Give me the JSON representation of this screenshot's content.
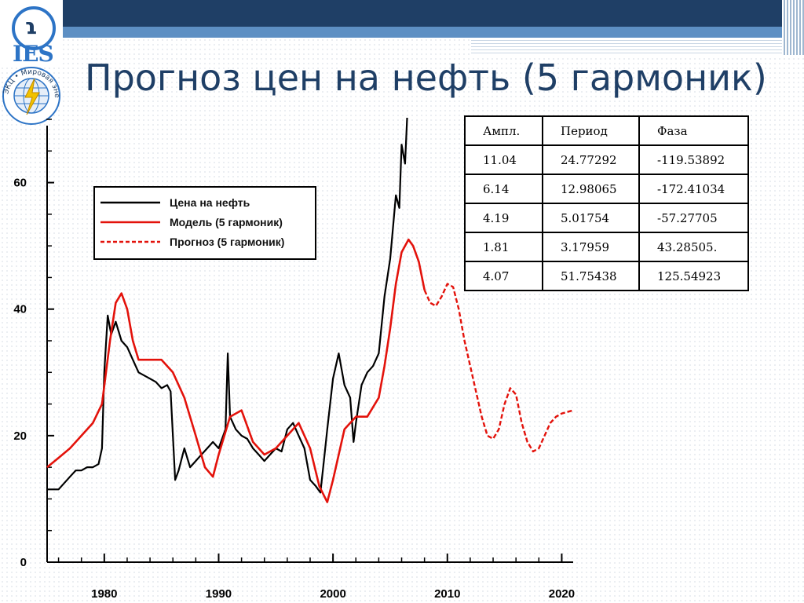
{
  "slide": {
    "title": "Прогноз цен на нефть (5 гармоник)",
    "logo_top_text": "IES",
    "logo_bottom_text": "ЭКЦ • Мировая энергетика"
  },
  "colors": {
    "header_dark": "#1f3f66",
    "header_light": "#5d8fc3",
    "title": "#1f3f66",
    "price_line": "#000000",
    "model_line": "#e3120b",
    "forecast_line": "#e3120b"
  },
  "table": {
    "headers": [
      "Ампл.",
      "Период",
      "Фаза"
    ],
    "rows": [
      [
        "11.04",
        "24.77292",
        "-119.53892"
      ],
      [
        "6.14",
        "12.98065",
        "-172.41034"
      ],
      [
        "4.19",
        "5.01754",
        "-57.27705"
      ],
      [
        "1.81",
        "3.17959",
        "43.28505."
      ],
      [
        "4.07",
        "51.75438",
        "125.54923"
      ]
    ]
  },
  "chart_data": {
    "type": "line",
    "xlim": [
      1975,
      2021
    ],
    "ylim": [
      0,
      70
    ],
    "x_ticks": [
      "1980",
      "1990",
      "2000",
      "2010",
      "2020"
    ],
    "y_ticks": [
      "0",
      "20",
      "40",
      "60"
    ],
    "grid": false,
    "legend_position": "top-left",
    "series": [
      {
        "name": "Цена на нефть",
        "style": "solid",
        "color": "#000000",
        "x": [
          1975,
          1976,
          1976.5,
          1977,
          1977.5,
          1978,
          1978.5,
          1979,
          1979.5,
          1979.8,
          1980,
          1980.3,
          1980.6,
          1981,
          1981.5,
          1982,
          1982.5,
          1983,
          1983.5,
          1984,
          1984.5,
          1985,
          1985.5,
          1985.8,
          1986,
          1986.2,
          1986.5,
          1987,
          1987.5,
          1988,
          1988.5,
          1989,
          1989.5,
          1990,
          1990.6,
          1990.8,
          1991,
          1991.5,
          1992,
          1992.5,
          1993,
          1993.5,
          1994,
          1994.5,
          1995,
          1995.5,
          1996,
          1996.5,
          1997,
          1997.5,
          1998,
          1998.5,
          1998.9,
          1999.2,
          1999.5,
          2000,
          2000.5,
          2001,
          2001.5,
          2001.8,
          2002,
          2002.5,
          2003,
          2003.5,
          2004,
          2004.5,
          2005,
          2005.5,
          2005.8,
          2006,
          2006.3,
          2006.5
        ],
        "y": [
          11.5,
          11.5,
          12.5,
          13.5,
          14.5,
          14.5,
          15,
          15,
          15.5,
          18,
          30,
          39,
          36,
          38,
          35,
          34,
          32,
          30,
          29.5,
          29,
          28.5,
          27.5,
          28,
          27,
          20,
          13,
          14.5,
          18,
          15,
          16,
          17,
          18,
          19,
          18,
          21,
          33,
          23,
          21,
          20,
          19.5,
          18,
          17,
          16,
          17,
          18,
          17.5,
          21,
          22,
          20,
          18,
          13,
          12,
          11,
          16,
          21,
          29,
          33,
          28,
          26,
          19,
          22,
          28,
          30,
          31,
          33,
          42,
          48,
          58,
          56,
          66,
          63,
          71
        ]
      },
      {
        "name": "Модель (5 гармоник)",
        "style": "solid",
        "color": "#e3120b",
        "x": [
          1975,
          1976,
          1977,
          1978,
          1979,
          1979.8,
          1980.5,
          1981,
          1981.5,
          1982,
          1982.5,
          1983,
          1984,
          1985,
          1986,
          1987,
          1988,
          1988.8,
          1989.5,
          1990,
          1991,
          1992,
          1993,
          1994,
          1995,
          1996,
          1997,
          1998,
          1998.8,
          1999.5,
          2000,
          2001,
          2002,
          2003,
          2004,
          2004.5,
          2005,
          2005.5,
          2006,
          2006.6,
          2007,
          2007.5,
          2008
        ],
        "y": [
          15,
          16.5,
          18,
          20,
          22,
          25,
          35,
          41,
          42.5,
          40,
          35,
          32,
          32,
          32,
          30,
          26,
          20,
          15,
          13.5,
          17,
          23,
          24,
          19,
          17,
          18,
          20,
          22,
          18,
          12,
          9.5,
          13,
          21,
          23,
          23,
          26,
          31,
          37,
          44,
          49,
          51,
          50,
          47.5,
          43
        ]
      },
      {
        "name": "Прогноз (5 гармоник)",
        "style": "dashed",
        "color": "#e3120b",
        "x": [
          2008,
          2008.5,
          2009,
          2009.5,
          2010,
          2010.5,
          2011,
          2011.5,
          2012,
          2012.5,
          2013,
          2013.5,
          2014,
          2014.5,
          2015,
          2015.5,
          2016,
          2016.5,
          2017,
          2017.5,
          2018,
          2018.5,
          2019,
          2019.5,
          2020,
          2021
        ],
        "y": [
          43,
          41,
          40.5,
          42,
          44,
          43.5,
          40,
          35,
          31,
          27,
          23,
          20,
          19.5,
          21,
          25,
          27.5,
          26.5,
          22,
          19,
          17.5,
          18,
          20,
          22,
          23,
          23.5,
          24
        ]
      }
    ]
  }
}
